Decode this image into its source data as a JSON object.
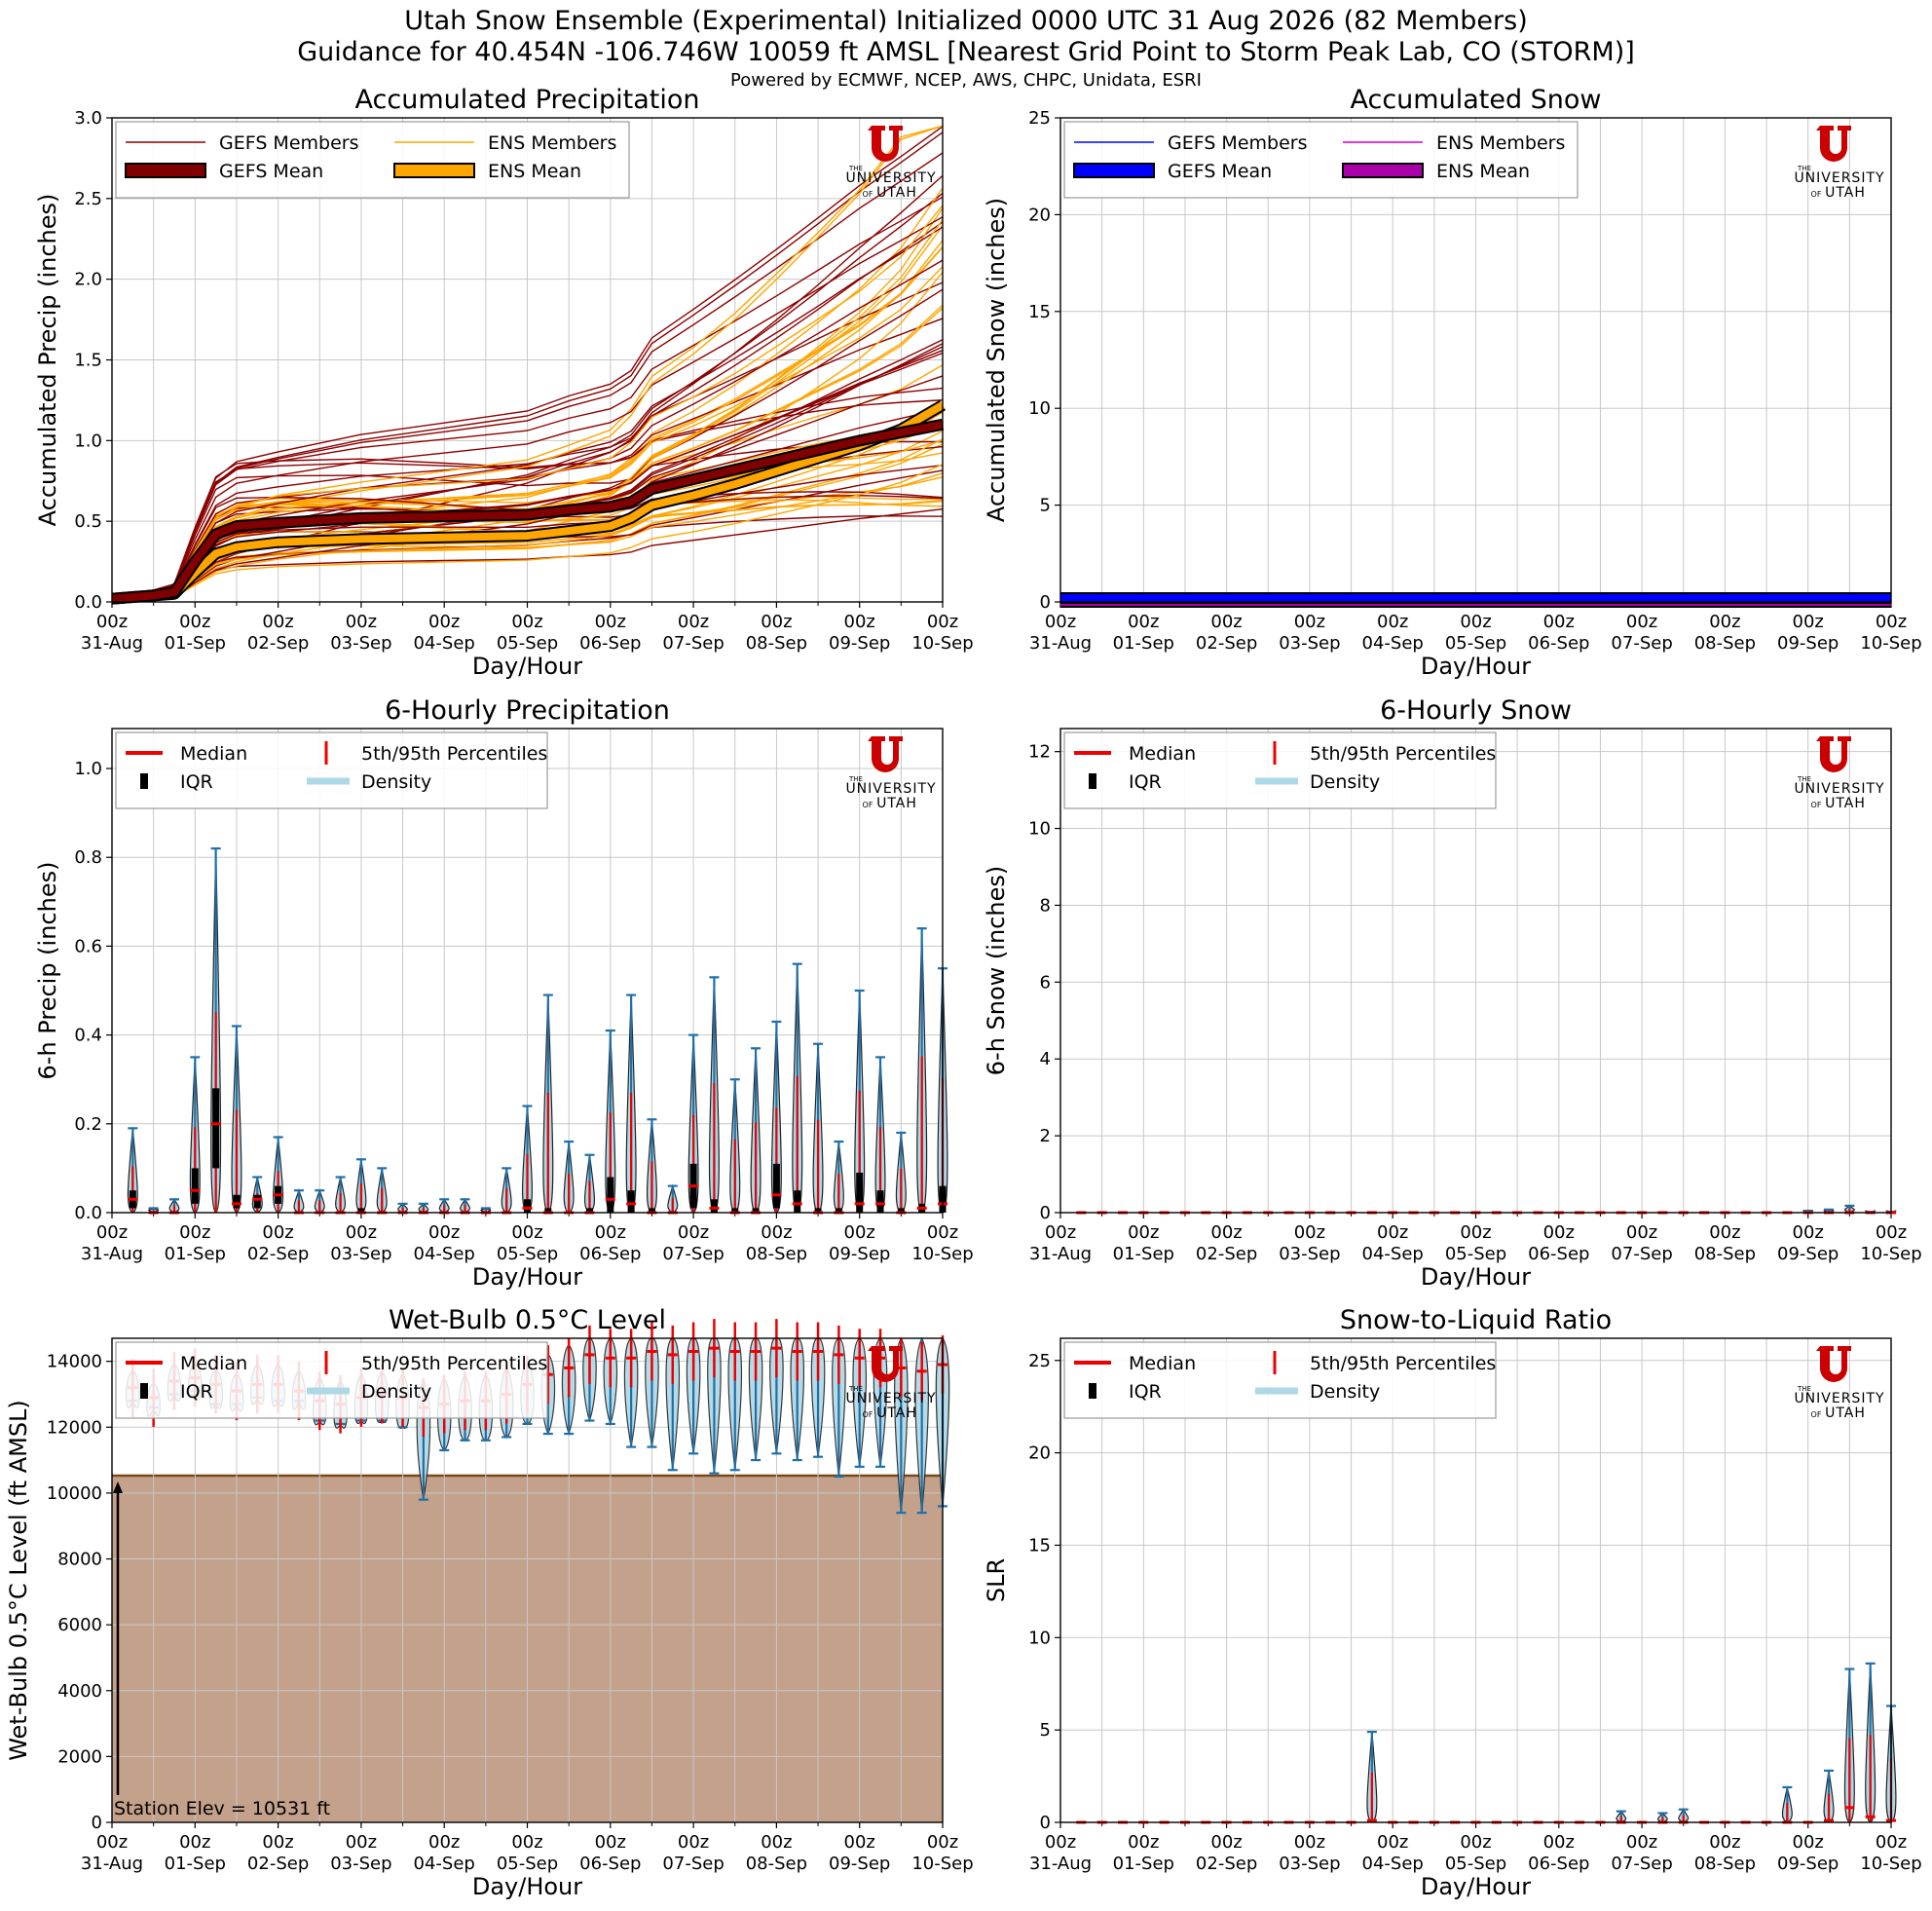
{
  "header": {
    "line1": "Utah Snow Ensemble (Experimental) Initialized 0000 UTC 31 Aug 2026 (82 Members)",
    "line2": "Guidance for 40.454N -106.746W 10059 ft AMSL [Nearest Grid Point to Storm Peak Lab, CO (STORM)]",
    "line3": "Powered by ECMWF, NCEP, AWS, CHPC, Unidata, ESRI"
  },
  "logo": {
    "the": "THE",
    "university": "UNIVERSITY",
    "of": "OF",
    "utah": "UTAH",
    "color": "#cc0000"
  },
  "time_axis": {
    "hour_label": "00z",
    "days": [
      "31-Aug",
      "01-Sep",
      "02-Sep",
      "03-Sep",
      "04-Sep",
      "05-Sep",
      "06-Sep",
      "07-Sep",
      "08-Sep",
      "09-Sep",
      "10-Sep"
    ],
    "xlabel": "Day/Hour"
  },
  "chart_data": [
    {
      "id": "accum_precip",
      "type": "line",
      "title": "Accumulated Precipitation",
      "ylabel": "Accumulated Precip (inches)",
      "xlabel": "Day/Hour",
      "ylim": [
        0,
        3.0
      ],
      "yticks": [
        "0.0",
        "0.5",
        "1.0",
        "1.5",
        "2.0",
        "2.5",
        "3.0"
      ],
      "grid": true,
      "legend": {
        "placement": "top-left",
        "entries": [
          "GEFS Members",
          "ENS Members",
          "GEFS Mean",
          "ENS Mean"
        ]
      },
      "colors": {
        "gefs_member": "#8b0000",
        "ens_member": "#ffa500",
        "gefs_mean": "#800000",
        "ens_mean": "#ffa500"
      },
      "x_days": [
        0,
        0.25,
        0.5,
        0.75,
        1,
        1.25,
        1.5,
        2,
        3,
        4,
        5,
        5.5,
        6,
        6.25,
        6.5,
        7,
        7.5,
        8,
        8.5,
        9,
        9.5,
        10
      ],
      "series": [
        {
          "name": "GEFS Mean",
          "values": [
            0.02,
            0.03,
            0.04,
            0.06,
            0.25,
            0.42,
            0.47,
            0.49,
            0.52,
            0.53,
            0.54,
            0.57,
            0.59,
            0.62,
            0.7,
            0.76,
            0.82,
            0.88,
            0.94,
            1.0,
            1.05,
            1.1
          ]
        },
        {
          "name": "ENS Mean",
          "values": [
            0.02,
            0.03,
            0.04,
            0.05,
            0.18,
            0.3,
            0.34,
            0.37,
            0.39,
            0.4,
            0.41,
            0.44,
            0.47,
            0.52,
            0.6,
            0.66,
            0.73,
            0.81,
            0.89,
            0.97,
            1.07,
            1.22
          ]
        }
      ]
    },
    {
      "id": "accum_snow",
      "type": "line",
      "title": "Accumulated Snow",
      "ylabel": "Accumulated Snow (inches)",
      "xlabel": "Day/Hour",
      "ylim": [
        0,
        25
      ],
      "yticks": [
        "0",
        "5",
        "10",
        "15",
        "20",
        "25"
      ],
      "grid": true,
      "legend": {
        "placement": "top-left",
        "entries": [
          "GEFS Members",
          "ENS Members",
          "GEFS Mean",
          "ENS Mean"
        ]
      },
      "colors": {
        "gefs_member": "#0000ff",
        "ens_member": "#cc00cc",
        "gefs_mean": "#0000ff",
        "ens_mean": "#aa00aa"
      },
      "x_days": [
        0,
        10
      ],
      "series": [
        {
          "name": "GEFS Mean",
          "values": [
            0.2,
            0.2
          ]
        },
        {
          "name": "ENS Mean",
          "values": [
            0.0,
            0.0
          ]
        }
      ]
    },
    {
      "id": "six_hour_precip",
      "type": "violin",
      "title": "6-Hourly Precipitation",
      "ylabel": "6-h Precip (inches)",
      "xlabel": "Day/Hour",
      "ylim": [
        0,
        1.09
      ],
      "yticks": [
        "0.0",
        "0.2",
        "0.4",
        "0.6",
        "0.8",
        "1.0"
      ],
      "grid": true,
      "legend": {
        "placement": "top-left",
        "entries": [
          "Median",
          "5th/95th Percentiles",
          "IQR",
          "Density"
        ]
      },
      "x_days": [
        0.25,
        0.5,
        0.75,
        1,
        1.25,
        1.5,
        1.75,
        2,
        2.25,
        2.5,
        2.75,
        3,
        3.25,
        3.5,
        3.75,
        4,
        4.25,
        4.5,
        4.75,
        5,
        5.25,
        5.5,
        5.75,
        6,
        6.25,
        6.5,
        6.75,
        7,
        7.25,
        7.5,
        7.75,
        8,
        8.25,
        8.5,
        8.75,
        9,
        9.25,
        9.5,
        9.75,
        10
      ],
      "whisker_top": [
        0.19,
        0.01,
        0.03,
        0.35,
        0.82,
        0.42,
        0.08,
        0.17,
        0.05,
        0.05,
        0.08,
        0.12,
        0.1,
        0.02,
        0.02,
        0.03,
        0.03,
        0.01,
        0.1,
        0.24,
        0.49,
        0.16,
        0.13,
        0.41,
        0.49,
        0.21,
        0.06,
        0.4,
        0.53,
        0.3,
        0.37,
        0.43,
        0.56,
        0.38,
        0.16,
        0.5,
        0.35,
        0.18,
        0.64,
        0.55
      ],
      "q75": [
        0.05,
        0.0,
        0.0,
        0.1,
        0.28,
        0.04,
        0.04,
        0.06,
        0.0,
        0.0,
        0.0,
        0.01,
        0.0,
        0.0,
        0.0,
        0.0,
        0.0,
        0.0,
        0.0,
        0.03,
        0.01,
        0.0,
        0.01,
        0.08,
        0.05,
        0.01,
        0.0,
        0.11,
        0.03,
        0.01,
        0.01,
        0.11,
        0.05,
        0.01,
        0.01,
        0.09,
        0.05,
        0.01,
        0.02,
        0.06
      ],
      "median": [
        0.03,
        0.0,
        0.0,
        0.05,
        0.2,
        0.02,
        0.03,
        0.04,
        0.0,
        0.0,
        0.0,
        0.0,
        0.0,
        0.0,
        0.0,
        0.0,
        0.0,
        0.0,
        0.0,
        0.01,
        0.0,
        0.0,
        0.0,
        0.03,
        0.02,
        0.0,
        0.0,
        0.06,
        0.01,
        0.0,
        0.0,
        0.04,
        0.02,
        0.0,
        0.0,
        0.02,
        0.02,
        0.0,
        0.01,
        0.02
      ],
      "q25": [
        0.01,
        0.0,
        0.0,
        0.02,
        0.1,
        0.01,
        0.01,
        0.02,
        0.0,
        0.0,
        0.0,
        0.0,
        0.0,
        0.0,
        0.0,
        0.0,
        0.0,
        0.0,
        0.0,
        0.0,
        0.0,
        0.0,
        0.0,
        0.0,
        0.0,
        0.0,
        0.0,
        0.01,
        0.0,
        0.0,
        0.0,
        0.01,
        0.0,
        0.0,
        0.0,
        0.0,
        0.0,
        0.0,
        0.0,
        0.0
      ]
    },
    {
      "id": "six_hour_snow",
      "type": "violin",
      "title": "6-Hourly Snow",
      "ylabel": "6-h Snow (inches)",
      "xlabel": "Day/Hour",
      "ylim": [
        0,
        12.6
      ],
      "yticks": [
        "0",
        "2",
        "4",
        "6",
        "8",
        "10",
        "12"
      ],
      "grid": true,
      "legend": {
        "placement": "top-left",
        "entries": [
          "Median",
          "5th/95th Percentiles",
          "IQR",
          "Density"
        ]
      },
      "x_days": [
        0.25,
        0.5,
        0.75,
        1,
        1.25,
        1.5,
        1.75,
        2,
        2.25,
        2.5,
        2.75,
        3,
        3.25,
        3.5,
        3.75,
        4,
        4.25,
        4.5,
        4.75,
        5,
        5.25,
        5.5,
        5.75,
        6,
        6.25,
        6.5,
        6.75,
        7,
        7.25,
        7.5,
        7.75,
        8,
        8.25,
        8.5,
        8.75,
        9,
        9.25,
        9.5,
        9.75,
        10
      ],
      "whisker_top": [
        0,
        0,
        0,
        0,
        0,
        0,
        0,
        0,
        0,
        0,
        0,
        0,
        0,
        0,
        0,
        0,
        0,
        0,
        0,
        0,
        0,
        0,
        0,
        0,
        0,
        0,
        0,
        0,
        0,
        0,
        0,
        0,
        0,
        0,
        0,
        0.05,
        0.08,
        0.18,
        0.02,
        0.02
      ],
      "median": [
        0,
        0,
        0,
        0,
        0,
        0,
        0,
        0,
        0,
        0,
        0,
        0,
        0,
        0,
        0,
        0,
        0,
        0,
        0,
        0,
        0,
        0,
        0,
        0,
        0,
        0,
        0,
        0,
        0,
        0,
        0,
        0,
        0,
        0,
        0,
        0,
        0,
        0,
        0,
        0
      ]
    },
    {
      "id": "wet_bulb",
      "type": "violin",
      "title": "Wet-Bulb 0.5°C Level",
      "ylabel": "Wet-Bulb 0.5°C Level (ft AMSL)",
      "xlabel": "Day/Hour",
      "ylim": [
        0,
        14700
      ],
      "yticks": [
        "0",
        "2000",
        "4000",
        "6000",
        "8000",
        "10000",
        "12000",
        "14000"
      ],
      "grid": true,
      "legend": {
        "placement": "top-left",
        "entries": [
          "Median",
          "5th/95th Percentiles",
          "IQR",
          "Density"
        ]
      },
      "station_elev_ft": 10531,
      "station_label": "Station Elev = 10531 ft",
      "x_days": [
        0.25,
        0.5,
        0.75,
        1,
        1.25,
        1.5,
        1.75,
        2,
        2.25,
        2.5,
        2.75,
        3,
        3.25,
        3.5,
        3.75,
        4,
        4.25,
        4.5,
        4.75,
        5,
        5.25,
        5.5,
        5.75,
        6,
        6.25,
        6.5,
        6.75,
        7,
        7.25,
        7.5,
        7.75,
        8,
        8.25,
        8.5,
        8.75,
        9,
        9.25,
        9.5,
        9.75,
        10
      ],
      "whisker_low": [
        12800,
        12600,
        13000,
        13100,
        12700,
        12700,
        12900,
        12800,
        12800,
        12200,
        12100,
        12200,
        12200,
        12000,
        9800,
        11300,
        11600,
        11600,
        11700,
        12100,
        11800,
        11800,
        12200,
        12100,
        11400,
        11400,
        10700,
        11200,
        10600,
        10700,
        11000,
        11200,
        11000,
        11100,
        10500,
        10800,
        10800,
        9400,
        9400,
        9600
      ],
      "median": [
        13200,
        12900,
        13400,
        13500,
        13300,
        13100,
        13300,
        13300,
        13100,
        12800,
        12700,
        12900,
        13000,
        12900,
        12600,
        12700,
        12800,
        12800,
        13000,
        13300,
        13600,
        13800,
        14200,
        14100,
        14100,
        14300,
        14200,
        14300,
        14400,
        14300,
        14300,
        14400,
        14300,
        14300,
        14200,
        14100,
        14100,
        13800,
        13700,
        13900
      ],
      "whisker_high": [
        13700,
        13300,
        13900,
        13900,
        13700,
        13600,
        13900,
        13900,
        13700,
        13500,
        13400,
        13600,
        13700,
        13600,
        13400,
        13500,
        13600,
        13600,
        13800,
        14000,
        14200,
        14500,
        14700,
        14700,
        14700,
        14700,
        14700,
        14700,
        14700,
        14700,
        14700,
        14700,
        14700,
        14700,
        14700,
        14700,
        14700,
        14700,
        14700,
        14700
      ]
    },
    {
      "id": "slr",
      "type": "violin",
      "title": "Snow-to-Liquid Ratio",
      "ylabel": "SLR",
      "xlabel": "Day/Hour",
      "ylim": [
        0,
        26.2
      ],
      "yticks": [
        "0",
        "5",
        "10",
        "15",
        "20",
        "25"
      ],
      "grid": true,
      "legend": {
        "placement": "top-left",
        "entries": [
          "Median",
          "5th/95th Percentiles",
          "IQR",
          "Density"
        ]
      },
      "x_days": [
        0.25,
        0.5,
        0.75,
        1,
        1.25,
        1.5,
        1.75,
        2,
        2.25,
        2.5,
        2.75,
        3,
        3.25,
        3.5,
        3.75,
        4,
        4.25,
        4.5,
        4.75,
        5,
        5.25,
        5.5,
        5.75,
        6,
        6.25,
        6.5,
        6.75,
        7,
        7.25,
        7.5,
        7.75,
        8,
        8.25,
        8.5,
        8.75,
        9,
        9.25,
        9.5,
        9.75,
        10
      ],
      "whisker_top": [
        0,
        0,
        0,
        0,
        0,
        0,
        0,
        0,
        0,
        0,
        0,
        0,
        0,
        0,
        4.9,
        0,
        0,
        0,
        0,
        0,
        0,
        0,
        0,
        0,
        0,
        0,
        0.6,
        0,
        0.5,
        0.7,
        0,
        0,
        0,
        0,
        1.9,
        0,
        2.8,
        8.3,
        8.6,
        6.3
      ],
      "median": [
        0,
        0,
        0,
        0,
        0,
        0,
        0,
        0,
        0,
        0,
        0,
        0,
        0,
        0,
        0.1,
        0,
        0,
        0,
        0,
        0,
        0,
        0,
        0,
        0,
        0,
        0,
        0,
        0,
        0,
        0,
        0,
        0,
        0,
        0,
        0,
        0,
        0.1,
        0.8,
        0.3,
        0.1
      ]
    }
  ]
}
